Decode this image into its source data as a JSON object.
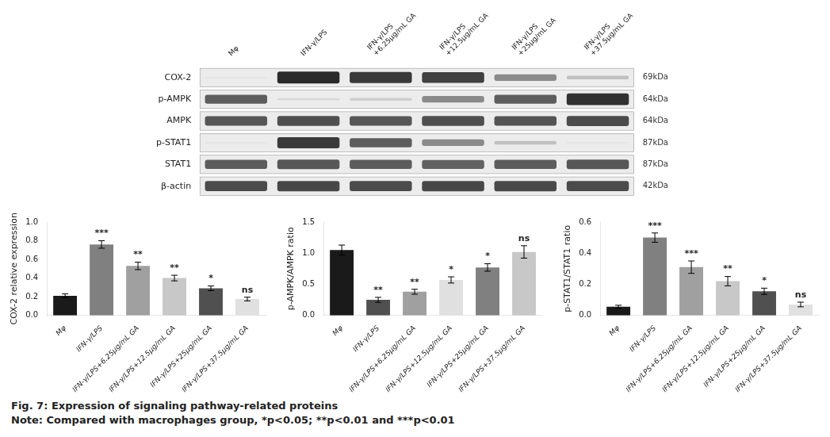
{
  "chart_data": [
    {
      "type": "heatmap",
      "categories": [
        "Mφ",
        "IFN-γ/LPS",
        "IFN-γ/LPS\n+6.25μg/mL GA",
        "IFN-γ/LPS\n+12.5μg/mL GA",
        "IFN-γ/LPS\n+25μg/mL GA",
        "IFN-γ/LPS\n+37.5μg/mL GA"
      ],
      "y_categories": [
        "COX-2",
        "p-AMPK",
        "AMPK",
        "p-STAT1",
        "STAT1",
        "β-actin"
      ],
      "y2_categories": [
        "69kDa",
        "64kDa",
        "64kDa",
        "87kDa",
        "87kDa",
        "42kDa"
      ],
      "cells": [
        [
          0.12,
          0.95,
          0.88,
          0.85,
          0.52,
          0.28
        ],
        [
          0.72,
          0.18,
          0.22,
          0.52,
          0.72,
          0.92
        ],
        [
          0.75,
          0.78,
          0.75,
          0.78,
          0.76,
          0.8
        ],
        [
          0.12,
          0.88,
          0.72,
          0.52,
          0.28,
          0.12
        ],
        [
          0.72,
          0.75,
          0.72,
          0.7,
          0.72,
          0.75
        ],
        [
          0.8,
          0.82,
          0.8,
          0.82,
          0.81,
          0.8
        ]
      ],
      "grid": false
    },
    {
      "type": "bar",
      "categories": [
        "Mφ",
        "IFN-γ/LPS",
        "IFN-γ/LPS+6.25μg/mL GA",
        "IFN-γ/LPS+12.5μg/mL GA",
        "IFN-γ/LPS+25μg/mL GA",
        "IFN-γ/LPS+37.5μg/mL GA"
      ],
      "values": [
        0.21,
        0.76,
        0.53,
        0.4,
        0.29,
        0.175
      ],
      "errors": [
        0.02,
        0.04,
        0.04,
        0.03,
        0.025,
        0.02
      ],
      "colors": [
        "#1a1a1a",
        "#808080",
        "#a0a0a0",
        "#c8c8c8",
        "#505050",
        "#e0e0e0"
      ],
      "annotations": [
        null,
        "***",
        "**",
        "**",
        "*",
        "ns"
      ],
      "ylabel": "COX-2 relative expression",
      "ylim": [
        0.0,
        1.0
      ],
      "yticks": [
        {
          "value": 0.0,
          "label": "0.0"
        },
        0.2,
        0.4,
        0.6,
        0.8,
        {
          "value": 1.0,
          "label": "1.0"
        }
      ],
      "grid": false
    },
    {
      "type": "bar",
      "categories": [
        "Mφ",
        "IFN-γ/LPS",
        "IFN-γ/LPS+6.25μg/mL GA",
        "IFN-γ/LPS+12.5μg/mL GA",
        "IFN-γ/LPS+25μg/mL GA",
        "IFN-γ/LPS+37.5μg/mL GA"
      ],
      "values": [
        1.05,
        0.25,
        0.38,
        0.57,
        0.77,
        1.02
      ],
      "errors": [
        0.08,
        0.04,
        0.04,
        0.05,
        0.06,
        0.1
      ],
      "colors": [
        "#1a1a1a",
        "#505050",
        "#a0a0a0",
        "#e0e0e0",
        "#808080",
        "#c8c8c8"
      ],
      "annotations": [
        null,
        "**",
        "**",
        "*",
        "*",
        "ns"
      ],
      "ylabel": "p-AMPK/AMPK ratio",
      "ylim": [
        0.0,
        1.5
      ],
      "yticks": [
        {
          "value": 0.0,
          "label": "0.0"
        },
        0.5,
        {
          "value": 1.0,
          "label": "1.0"
        },
        1.5
      ],
      "grid": false
    },
    {
      "type": "bar",
      "categories": [
        "Mφ",
        "IFN-γ/LPS",
        "IFN-γ/LPS+6.25μg/mL GA",
        "IFN-γ/LPS+12.5μg/mL GA",
        "IFN-γ/LPS+25μg/mL GA",
        "IFN-γ/LPS+37.5μg/mL GA"
      ],
      "values": [
        0.055,
        0.5,
        0.31,
        0.22,
        0.155,
        0.07
      ],
      "errors": [
        0.01,
        0.03,
        0.04,
        0.03,
        0.02,
        0.015
      ],
      "colors": [
        "#1a1a1a",
        "#808080",
        "#a0a0a0",
        "#c8c8c8",
        "#505050",
        "#e0e0e0"
      ],
      "annotations": [
        null,
        "***",
        "***",
        "**",
        "*",
        "ns"
      ],
      "ylabel": "p-STAT1/STAT1 ratio",
      "ylim": [
        0.0,
        0.6
      ],
      "yticks": [
        {
          "value": 0.0,
          "label": "0.0"
        },
        0.2,
        0.4,
        0.6
      ],
      "grid": false
    }
  ],
  "annotations": [
    "Fig. 7: Expression of signaling pathway-related proteins",
    "Note: Compared with macrophages group, *p<0.05; **p<0.01 and ***p<0.01"
  ]
}
